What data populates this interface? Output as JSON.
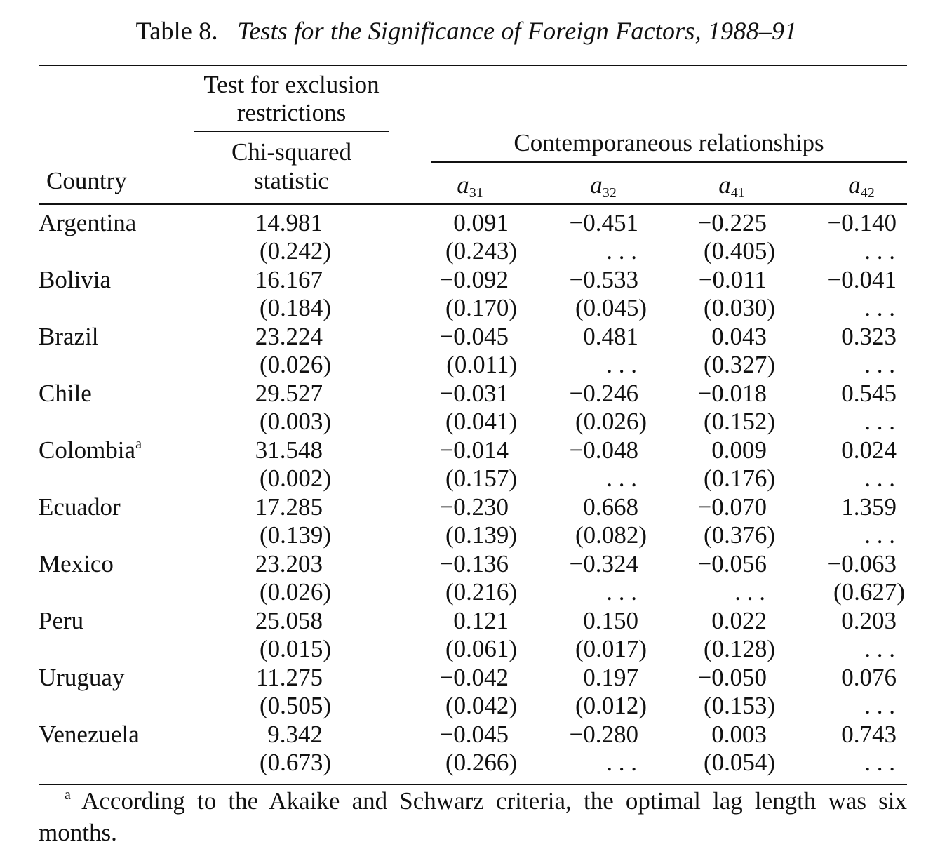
{
  "title": {
    "label": "Table 8.",
    "text": "Tests for the Significance of Foreign Factors, 1988–91"
  },
  "headers": {
    "country": "Country",
    "exclusion_group": [
      "Test for exclusion",
      "restrictions"
    ],
    "chi_squared": [
      "Chi-squared",
      "statistic"
    ],
    "contemporaneous": "Contemporaneous relationships",
    "a31": {
      "base": "a",
      "sub": "31"
    },
    "a32": {
      "base": "a",
      "sub": "32"
    },
    "a41": {
      "base": "a",
      "sub": "41"
    },
    "a42": {
      "base": "a",
      "sub": "42"
    }
  },
  "rows": [
    {
      "country": "Argentina",
      "note": "",
      "chi": "14.981",
      "chi_p": "(0.242)",
      "a31": "0.091",
      "a31_p": "(0.243)",
      "a32": "−0.451",
      "a32_p": ". . .",
      "a41": "−0.225",
      "a41_p": "(0.405)",
      "a42": "−0.140",
      "a42_p": ". . ."
    },
    {
      "country": "Bolivia",
      "note": "",
      "chi": "16.167",
      "chi_p": "(0.184)",
      "a31": "−0.092",
      "a31_p": "(0.170)",
      "a32": "−0.533",
      "a32_p": "(0.045)",
      "a41": "−0.011",
      "a41_p": "(0.030)",
      "a42": "−0.041",
      "a42_p": ". . ."
    },
    {
      "country": "Brazil",
      "note": "",
      "chi": "23.224",
      "chi_p": "(0.026)",
      "a31": "−0.045",
      "a31_p": "(0.011)",
      "a32": "0.481",
      "a32_p": ". . .",
      "a41": "0.043",
      "a41_p": "(0.327)",
      "a42": "0.323",
      "a42_p": ". . ."
    },
    {
      "country": "Chile",
      "note": "",
      "chi": "29.527",
      "chi_p": "(0.003)",
      "a31": "−0.031",
      "a31_p": "(0.041)",
      "a32": "−0.246",
      "a32_p": "(0.026)",
      "a41": "−0.018",
      "a41_p": "(0.152)",
      "a42": "0.545",
      "a42_p": ". . ."
    },
    {
      "country": "Colombia",
      "note": "a",
      "chi": "31.548",
      "chi_p": "(0.002)",
      "a31": "−0.014",
      "a31_p": "(0.157)",
      "a32": "−0.048",
      "a32_p": ". . .",
      "a41": "0.009",
      "a41_p": "(0.176)",
      "a42": "0.024",
      "a42_p": ". . ."
    },
    {
      "country": "Ecuador",
      "note": "",
      "chi": "17.285",
      "chi_p": "(0.139)",
      "a31": "−0.230",
      "a31_p": "(0.139)",
      "a32": "0.668",
      "a32_p": "(0.082)",
      "a41": "−0.070",
      "a41_p": "(0.376)",
      "a42": "1.359",
      "a42_p": ". . ."
    },
    {
      "country": "Mexico",
      "note": "",
      "chi": "23.203",
      "chi_p": "(0.026)",
      "a31": "−0.136",
      "a31_p": "(0.216)",
      "a32": "−0.324",
      "a32_p": ". . .",
      "a41": "−0.056",
      "a41_p": ". . .",
      "a42": "−0.063",
      "a42_p": "(0.627)"
    },
    {
      "country": "Peru",
      "note": "",
      "chi": "25.058",
      "chi_p": "(0.015)",
      "a31": "0.121",
      "a31_p": "(0.061)",
      "a32": "0.150",
      "a32_p": "(0.017)",
      "a41": "0.022",
      "a41_p": "(0.128)",
      "a42": "0.203",
      "a42_p": ". . ."
    },
    {
      "country": "Uruguay",
      "note": "",
      "chi": "11.275",
      "chi_p": "(0.505)",
      "a31": "−0.042",
      "a31_p": "(0.042)",
      "a32": "0.197",
      "a32_p": "(0.012)",
      "a41": "−0.050",
      "a41_p": "(0.153)",
      "a42": "0.076",
      "a42_p": ". . ."
    },
    {
      "country": "Venezuela",
      "note": "",
      "chi": "9.342",
      "chi_p": "(0.673)",
      "a31": "−0.045",
      "a31_p": "(0.266)",
      "a32": "−0.280",
      "a32_p": ". . .",
      "a41": "0.003",
      "a41_p": "(0.054)",
      "a42": "0.743",
      "a42_p": ". . ."
    }
  ],
  "footnote": {
    "marker": "a",
    "text": "According to the Akaike and Schwarz criteria, the optimal lag length was six months."
  }
}
